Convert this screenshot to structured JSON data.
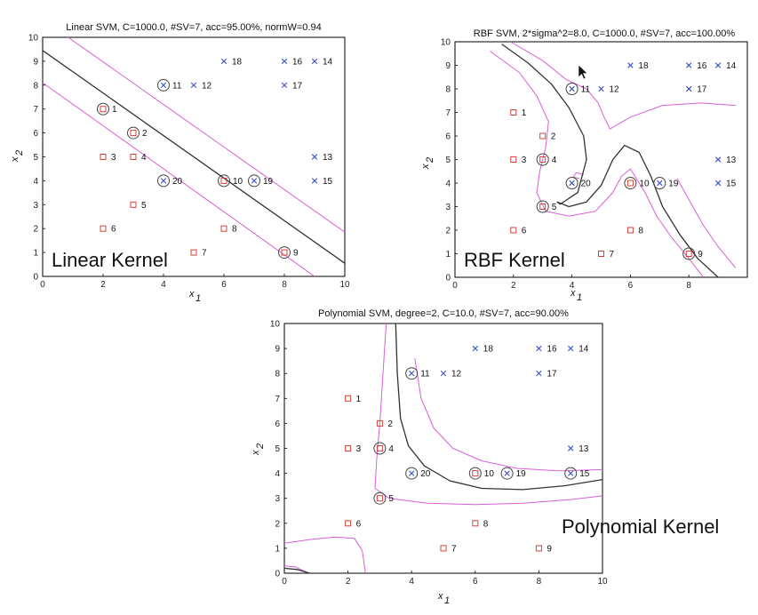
{
  "chart_data": [
    {
      "id": "linear",
      "type": "scatter",
      "title": "Linear SVM, C=1000.0, #SV=7, acc=95.00%, normW=0.94",
      "kernel_label": "Linear Kernel",
      "xlabel": "x",
      "xlabel_sub": "1",
      "ylabel": "x",
      "ylabel_sub": "2",
      "xlim": [
        0,
        10
      ],
      "ylim": [
        0,
        10
      ],
      "xticks": [
        0,
        2,
        4,
        6,
        8,
        10
      ],
      "yticks": [
        0,
        1,
        2,
        3,
        4,
        5,
        6,
        7,
        8,
        9,
        10
      ],
      "support_vectors": [
        1,
        2,
        9,
        10,
        11,
        19,
        20
      ],
      "decision_boundary": [
        [
          0,
          9.45
        ],
        [
          10,
          0.55
        ]
      ],
      "margins": [
        [
          [
            0,
            10.75
          ],
          [
            10,
            1.85
          ]
        ],
        [
          [
            0,
            8.1
          ],
          [
            9,
            0
          ]
        ]
      ]
    },
    {
      "id": "rbf",
      "type": "scatter",
      "title": "RBF SVM, 2*sigma^2=8.0, C=1000.0, #SV=7, acc=100.00%",
      "kernel_label": "RBF Kernel",
      "xlabel": "x",
      "xlabel_sub": "1",
      "ylabel": "x",
      "ylabel_sub": "2",
      "xlim": [
        0,
        10
      ],
      "ylim": [
        0,
        10
      ],
      "xticks": [
        0,
        2,
        4,
        6,
        8
      ],
      "yticks": [
        0,
        1,
        2,
        3,
        4,
        5,
        6,
        7,
        8,
        9,
        10
      ],
      "support_vectors": [
        4,
        5,
        9,
        10,
        11,
        19,
        20
      ],
      "decision_boundary": [
        [
          1.6,
          9.9
        ],
        [
          2.5,
          9.1
        ],
        [
          3.3,
          8.2
        ],
        [
          3.9,
          7.2
        ],
        [
          4.4,
          6.0
        ],
        [
          4.5,
          5.0
        ],
        [
          4.2,
          3.6
        ],
        [
          3.6,
          3.1
        ],
        [
          3.5,
          3.2
        ],
        [
          3.9,
          3.0
        ],
        [
          4.5,
          3.2
        ],
        [
          5.0,
          3.9
        ],
        [
          5.4,
          5.0
        ],
        [
          5.8,
          5.6
        ],
        [
          6.3,
          5.3
        ],
        [
          6.7,
          4.3
        ],
        [
          7.1,
          3.0
        ],
        [
          7.7,
          1.8
        ],
        [
          8.3,
          0.8
        ],
        [
          9.0,
          0
        ]
      ],
      "margins": [
        [
          [
            1.2,
            9.6
          ],
          [
            2.2,
            8.7
          ],
          [
            2.8,
            7.7
          ],
          [
            3.2,
            6.6
          ],
          [
            3.1,
            5.5
          ],
          [
            2.9,
            4.5
          ],
          [
            2.8,
            3.6
          ],
          [
            3.1,
            2.8
          ],
          [
            3.9,
            2.6
          ],
          [
            4.8,
            2.8
          ],
          [
            5.4,
            3.6
          ],
          [
            5.7,
            4.3
          ],
          [
            6.0,
            4.6
          ],
          [
            6.5,
            3.6
          ],
          [
            6.9,
            2.6
          ],
          [
            7.4,
            1.7
          ],
          [
            8.0,
            0.8
          ],
          [
            8.5,
            0
          ]
        ],
        [
          [
            1.9,
            10
          ],
          [
            3.0,
            9.2
          ],
          [
            3.8,
            8.4
          ],
          [
            4.5,
            8.0
          ],
          [
            4.9,
            7.4
          ],
          [
            5.1,
            6.8
          ],
          [
            5.3,
            6.3
          ],
          [
            6.0,
            6.8
          ],
          [
            7.1,
            7.3
          ],
          [
            8.4,
            7.4
          ],
          [
            9.6,
            7.3
          ]
        ],
        [
          [
            4.4,
            4.35
          ],
          [
            4.15,
            4.45
          ],
          [
            4.05,
            4.25
          ],
          [
            4.25,
            4.2
          ]
        ],
        [
          [
            7.6,
            4.2
          ],
          [
            8.0,
            3.3
          ],
          [
            8.5,
            2.2
          ],
          [
            9.0,
            1.3
          ],
          [
            9.6,
            0.4
          ]
        ]
      ]
    },
    {
      "id": "poly",
      "type": "scatter",
      "title": "Polynomial SVM, degree=2, C=10.0, #SV=7, acc=90.00%",
      "kernel_label": "Polynomial Kernel",
      "xlabel": "x",
      "xlabel_sub": "1",
      "ylabel": "x",
      "ylabel_sub": "2",
      "xlim": [
        0,
        10
      ],
      "ylim": [
        0,
        10
      ],
      "xticks": [
        0,
        2,
        4,
        6,
        8,
        10
      ],
      "yticks": [
        0,
        1,
        2,
        3,
        4,
        5,
        6,
        7,
        8,
        9,
        10
      ],
      "support_vectors": [
        4,
        5,
        10,
        11,
        15,
        19,
        20
      ],
      "decision_boundary": [
        [
          3.5,
          10
        ],
        [
          3.55,
          8.0
        ],
        [
          3.65,
          6.2
        ],
        [
          3.9,
          5.1
        ],
        [
          4.4,
          4.3
        ],
        [
          5.2,
          3.7
        ],
        [
          6.2,
          3.4
        ],
        [
          7.5,
          3.35
        ],
        [
          8.8,
          3.5
        ],
        [
          10,
          3.75
        ]
      ],
      "margins": [
        [
          [
            3.2,
            10
          ],
          [
            3.1,
            8.0
          ],
          [
            3.0,
            6.0
          ],
          [
            2.9,
            4.5
          ],
          [
            2.85,
            3.4
          ],
          [
            3.3,
            3.0
          ],
          [
            4.5,
            2.8
          ],
          [
            6.0,
            2.75
          ],
          [
            7.5,
            2.8
          ],
          [
            9.0,
            2.95
          ],
          [
            10,
            3.1
          ]
        ],
        [
          [
            4.1,
            8.6
          ],
          [
            4.3,
            7.0
          ],
          [
            4.7,
            5.8
          ],
          [
            5.3,
            5.0
          ],
          [
            6.2,
            4.5
          ],
          [
            7.3,
            4.2
          ],
          [
            8.6,
            4.1
          ],
          [
            10,
            4.15
          ]
        ],
        [
          [
            0,
            1.2
          ],
          [
            0.8,
            1.35
          ],
          [
            1.6,
            1.45
          ],
          [
            2.2,
            1.4
          ],
          [
            2.45,
            0.9
          ],
          [
            2.55,
            0
          ]
        ],
        [
          [
            0,
            0.3
          ],
          [
            0.35,
            0.25
          ],
          [
            0.6,
            0.1
          ],
          [
            0.75,
            0
          ]
        ]
      ],
      "margin_extra": [
        [
          0,
          0.2
        ],
        [
          0.4,
          0.15
        ],
        [
          0.8,
          0
        ]
      ]
    }
  ],
  "points": [
    {
      "id": 1,
      "x": 2,
      "y": 7,
      "cls": "neg",
      "label": "1"
    },
    {
      "id": 2,
      "x": 3,
      "y": 6,
      "cls": "neg",
      "label": "2"
    },
    {
      "id": 3,
      "x": 2,
      "y": 5,
      "cls": "neg",
      "label": "3"
    },
    {
      "id": 4,
      "x": 3,
      "y": 5,
      "cls": "neg",
      "label": "4"
    },
    {
      "id": 5,
      "x": 3,
      "y": 3,
      "cls": "neg",
      "label": "5"
    },
    {
      "id": 6,
      "x": 2,
      "y": 2,
      "cls": "neg",
      "label": "6"
    },
    {
      "id": 7,
      "x": 5,
      "y": 1,
      "cls": "neg",
      "label": "7"
    },
    {
      "id": 8,
      "x": 6,
      "y": 2,
      "cls": "neg",
      "label": "8"
    },
    {
      "id": 9,
      "x": 8,
      "y": 1,
      "cls": "neg",
      "label": "9"
    },
    {
      "id": 10,
      "x": 6,
      "y": 4,
      "cls": "neg",
      "label": "10"
    },
    {
      "id": 11,
      "x": 4,
      "y": 8,
      "cls": "pos",
      "label": "11"
    },
    {
      "id": 12,
      "x": 5,
      "y": 8,
      "cls": "pos",
      "label": "12"
    },
    {
      "id": 13,
      "x": 9,
      "y": 5,
      "cls": "pos",
      "label": "13"
    },
    {
      "id": 14,
      "x": 9,
      "y": 9,
      "cls": "pos",
      "label": "14"
    },
    {
      "id": 15,
      "x": 9,
      "y": 4,
      "cls": "pos",
      "label": "15"
    },
    {
      "id": 16,
      "x": 8,
      "y": 9,
      "cls": "pos",
      "label": "16"
    },
    {
      "id": 17,
      "x": 8,
      "y": 8,
      "cls": "pos",
      "label": "17"
    },
    {
      "id": 18,
      "x": 6,
      "y": 9,
      "cls": "pos",
      "label": "18"
    },
    {
      "id": 19,
      "x": 7,
      "y": 4,
      "cls": "pos",
      "label": "19"
    },
    {
      "id": 20,
      "x": 4,
      "y": 4,
      "cls": "pos",
      "label": "20"
    }
  ],
  "colors": {
    "neg": "#d9403a",
    "pos": "#3a52c8",
    "boundary": "#333333",
    "margin": "#d860d8",
    "sv_ring": "#444444"
  }
}
